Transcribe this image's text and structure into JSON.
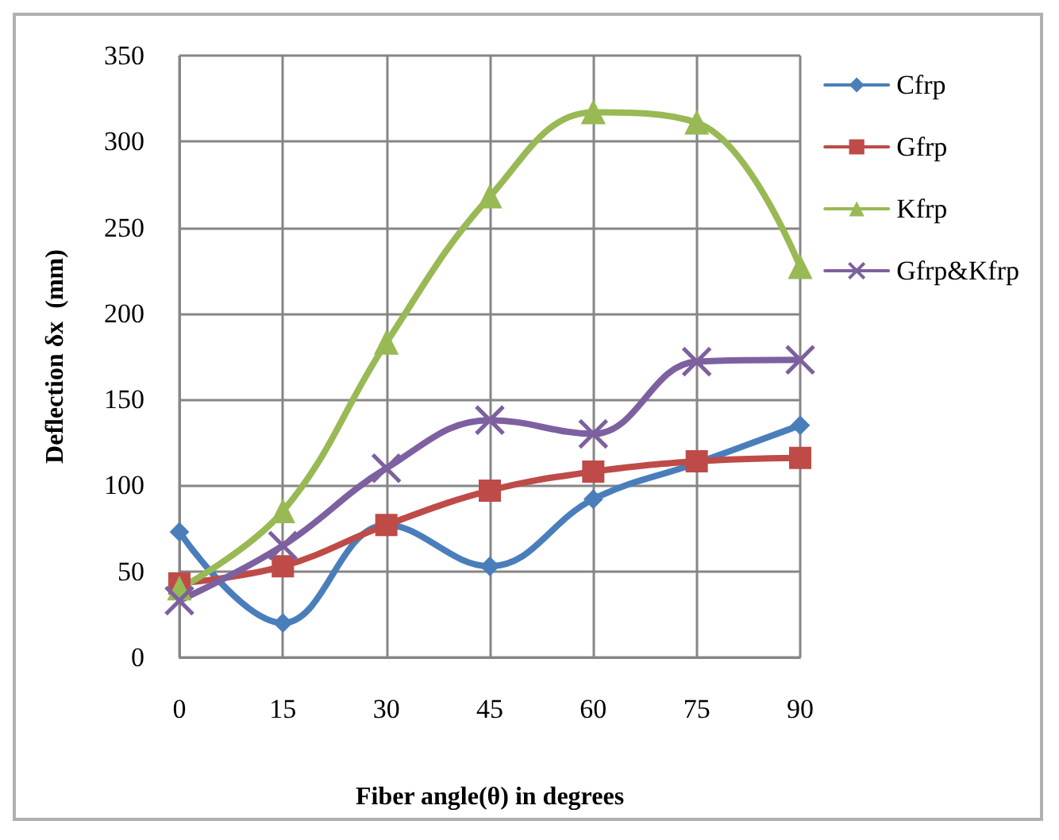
{
  "chart_data": {
    "type": "line",
    "xlabel": "Fiber angle(θ) in degrees",
    "ylabel": "Deflection δx  (mm)",
    "x": [
      0,
      15,
      30,
      45,
      60,
      75,
      90
    ],
    "xlim": [
      0,
      90
    ],
    "xticks": [
      0,
      15,
      30,
      45,
      60,
      75,
      90
    ],
    "ylim": [
      0,
      350
    ],
    "yticks": [
      0,
      50,
      100,
      150,
      200,
      250,
      300,
      350
    ],
    "grid": true,
    "legend": "right",
    "series": [
      {
        "name": "Cfrp",
        "color": "#4a7ebb",
        "marker": "diamond",
        "values": [
          73,
          20,
          77,
          53,
          92,
          113,
          135
        ]
      },
      {
        "name": "Gfrp",
        "color": "#be4b48",
        "marker": "square",
        "values": [
          43,
          53,
          77,
          97,
          108,
          114,
          116
        ]
      },
      {
        "name": "Kfrp",
        "color": "#98b954",
        "marker": "triangle",
        "values": [
          40,
          85,
          183,
          268,
          317,
          311,
          227
        ]
      },
      {
        "name": "Gfrp&Kfrp",
        "color": "#7d60a0",
        "marker": "cross",
        "values": [
          33,
          65,
          110,
          138,
          130,
          172,
          173
        ]
      }
    ]
  }
}
